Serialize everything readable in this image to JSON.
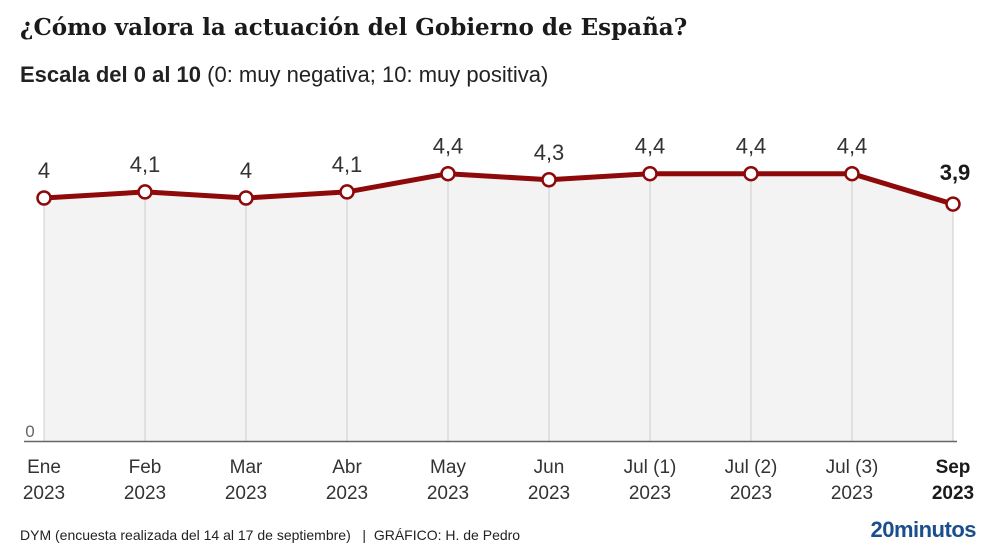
{
  "title": "¿Cómo valora la actuación del Gobierno de España?",
  "subtitle_bold": "Escala del 0 al 10",
  "subtitle_rest": " (0: muy negativa; 10: muy positiva)",
  "footer": "DYM (encuesta realizada del 14 al 17 de septiembre)   |  GRÁFICO: H. de Pedro",
  "logo": "20minutos",
  "chart_data": {
    "type": "line",
    "categories": [
      [
        "Ene",
        "2023"
      ],
      [
        "Feb",
        "2023"
      ],
      [
        "Mar",
        "2023"
      ],
      [
        "Abr",
        "2023"
      ],
      [
        "May",
        "2023"
      ],
      [
        "Jun",
        "2023"
      ],
      [
        "Jul (1)",
        "2023"
      ],
      [
        "Jul (2)",
        "2023"
      ],
      [
        "Jul (3)",
        "2023"
      ],
      [
        "Sep",
        "2023"
      ]
    ],
    "values": [
      4,
      4.1,
      4,
      4.1,
      4.4,
      4.3,
      4.4,
      4.4,
      4.4,
      3.9
    ],
    "value_labels": [
      "4",
      "4,1",
      "4",
      "4,1",
      "4,4",
      "4,3",
      "4,4",
      "4,4",
      "4,4",
      "3,9"
    ],
    "y_tick_labels": [
      "0"
    ],
    "ylim": [
      0,
      10
    ],
    "grid": true,
    "colors": {
      "line": "#8e0a0a",
      "fill": "#f3f3f3",
      "grid": "#cccccc"
    }
  }
}
